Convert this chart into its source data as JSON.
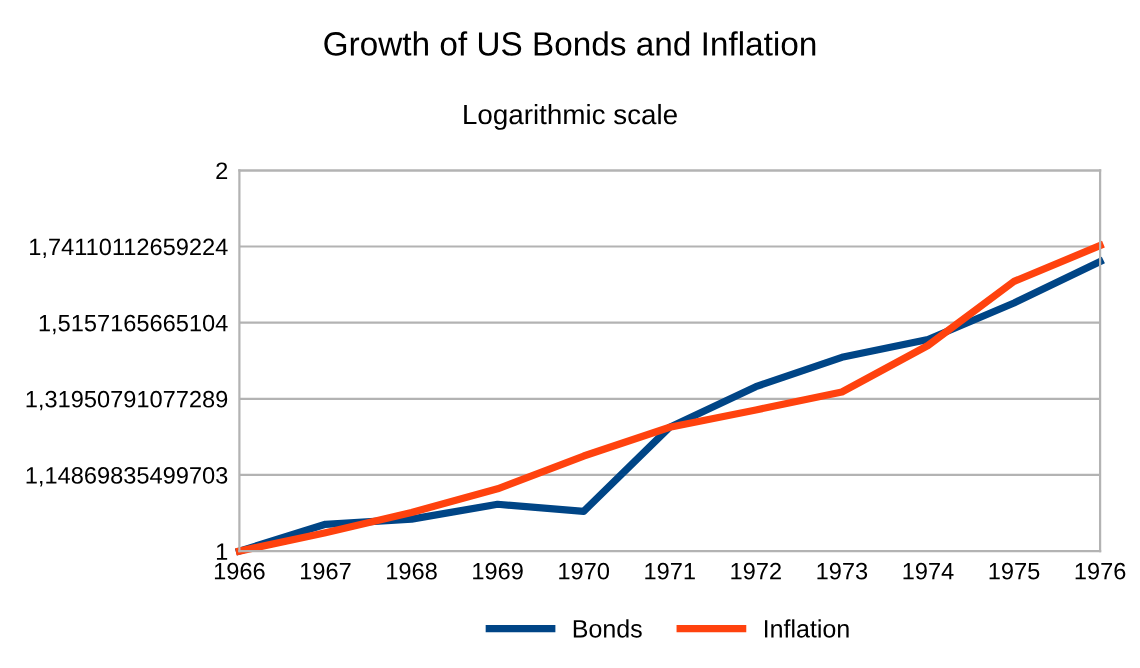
{
  "chart_data": {
    "type": "line",
    "title": "Growth of US Bonds and Inflation",
    "subtitle": "Logarithmic scale",
    "x": [
      1966,
      1967,
      1968,
      1969,
      1970,
      1971,
      1972,
      1973,
      1974,
      1975,
      1976
    ],
    "series": [
      {
        "name": "Bonds",
        "color": "#004586",
        "values": [
          1,
          1.05,
          1.06,
          1.089,
          1.075,
          1.253,
          1.349,
          1.423,
          1.47,
          1.571,
          1.694
        ]
      },
      {
        "name": "Inflation",
        "color": "#ff420e",
        "values": [
          1,
          1.034,
          1.073,
          1.12,
          1.189,
          1.253,
          1.293,
          1.336,
          1.454,
          1.634,
          1.744
        ]
      }
    ],
    "log": "y",
    "xlim": [
      1966,
      1976
    ],
    "xticks": [
      1966,
      1967,
      1968,
      1969,
      1970,
      1971,
      1972,
      1973,
      1974,
      1975,
      1976
    ],
    "ylim": [
      1,
      2
    ],
    "yticks": [
      {
        "value": 1,
        "label": "1"
      },
      {
        "value": 1.14869835499703,
        "label": "1,14869835499703"
      },
      {
        "value": 1.31950791077289,
        "label": "1,31950791077289"
      },
      {
        "value": 1.5157165665104,
        "label": "1,5157165665104"
      },
      {
        "value": 1.74110112659224,
        "label": "1,74110112659224"
      },
      {
        "value": 2,
        "label": "2"
      }
    ],
    "grid": "y",
    "legend": "bottom",
    "marker": "none",
    "line_style": "solid"
  }
}
